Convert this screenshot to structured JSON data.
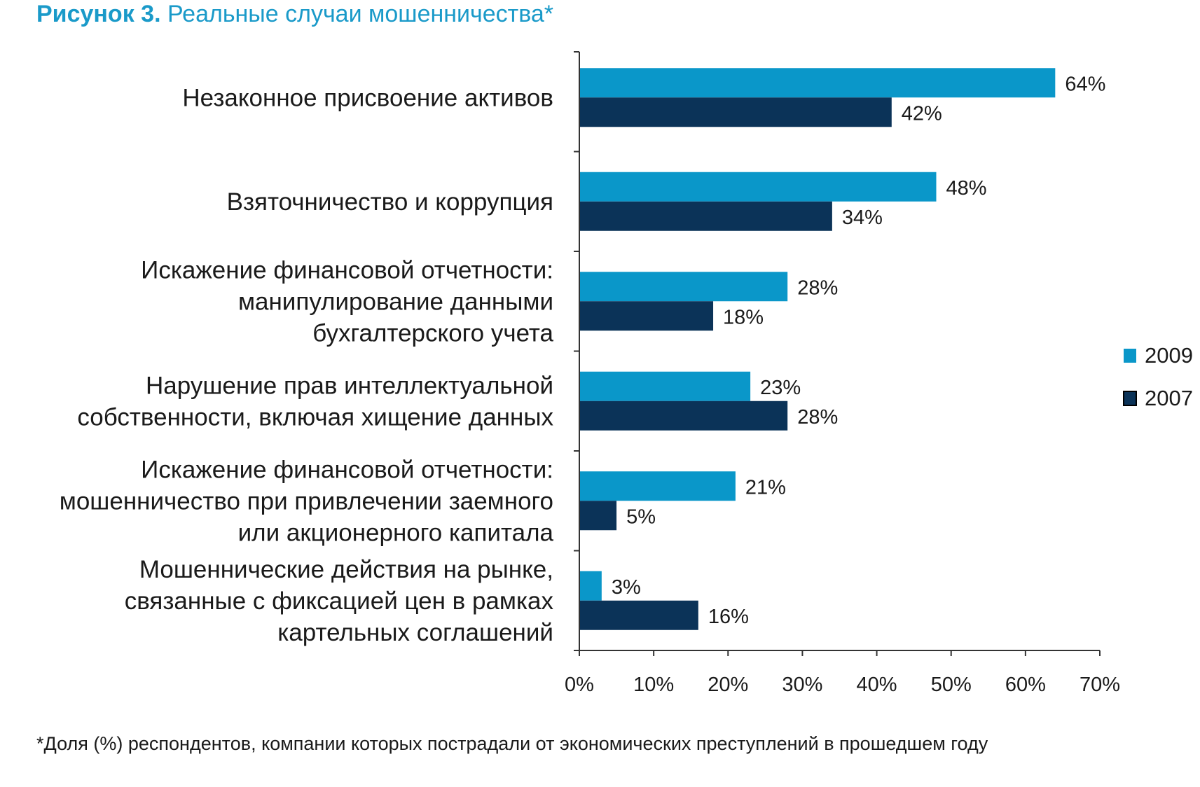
{
  "title": {
    "bold": "Рисунок 3.",
    "rest": " Реальные случаи мошенничества*"
  },
  "footnote": "*Доля (%) респондентов, компании которых пострадали от экономических преступлений в прошедшем году",
  "colors": {
    "series_2009": "#0a97c9",
    "series_2007": "#0b3358",
    "title": "#1a9ac9",
    "axis": "#333333"
  },
  "chart_data": {
    "type": "bar",
    "orientation": "horizontal",
    "categories": [
      [
        "Незаконное присвоение активов"
      ],
      [
        "Взяточничество и коррупция"
      ],
      [
        "Искажение финансовой отчетности:",
        "манипулирование данными",
        "бухгалтерского учета"
      ],
      [
        "Нарушение прав интеллектуальной",
        "собственности, включая хищение данных"
      ],
      [
        "Искажение финансовой отчетности:",
        "мошенничество при привлечении заемного",
        "или акционерного капитала"
      ],
      [
        "Мошеннические действия на рынке,",
        "связанные с фиксацией цен в рамках",
        "картельных соглашений"
      ]
    ],
    "series": [
      {
        "name": "2009",
        "values": [
          64,
          48,
          28,
          23,
          21,
          3
        ],
        "labels": [
          "64%",
          "48%",
          "28%",
          "23%",
          "21%",
          "3%"
        ]
      },
      {
        "name": "2007",
        "values": [
          42,
          34,
          18,
          28,
          5,
          16
        ],
        "labels": [
          "42%",
          "34%",
          "18%",
          "28%",
          "5%",
          "16%"
        ]
      }
    ],
    "xlim": [
      0,
      70
    ],
    "xticks": [
      "0%",
      "10%",
      "20%",
      "30%",
      "40%",
      "50%",
      "60%",
      "70%"
    ],
    "legend_position": "right",
    "grid": false
  }
}
